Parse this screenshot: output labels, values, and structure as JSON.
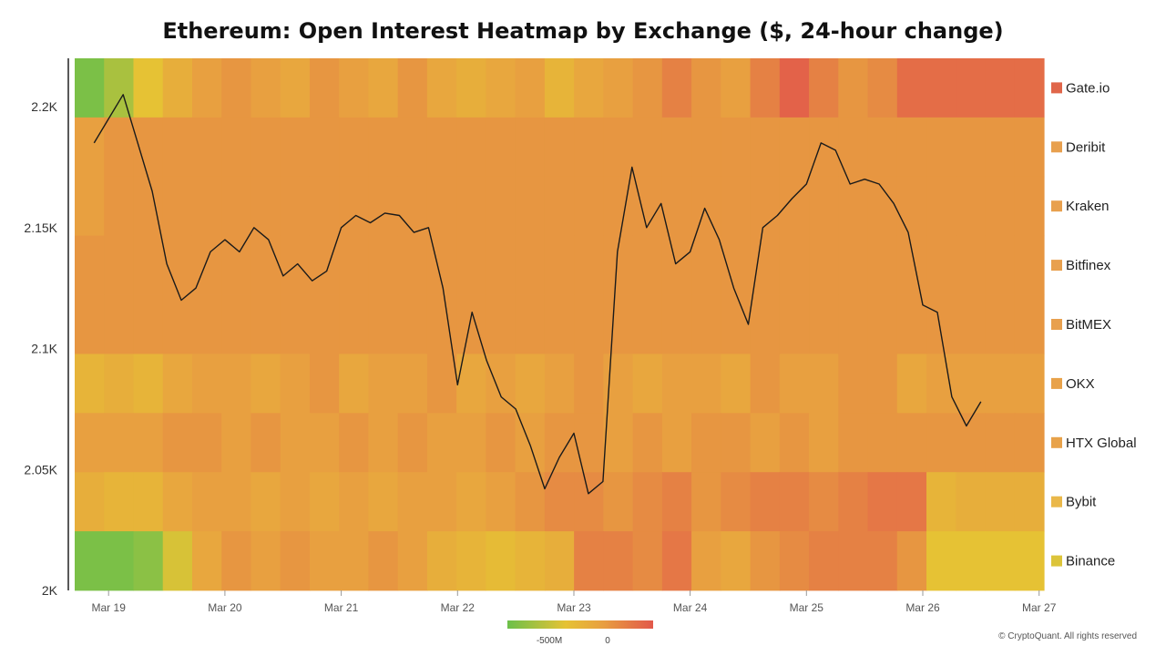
{
  "title": "Ethereum: Open Interest Heatmap by Exchange ($, 24-hour change)",
  "credit": "© CryptoQuant. All rights reserved",
  "chart_data": {
    "type": "heatmap",
    "title": "Ethereum: Open Interest Heatmap by Exchange ($, 24-hour change)",
    "x_ticks": [
      "Mar 19",
      "Mar 20",
      "Mar 21",
      "Mar 22",
      "Mar 23",
      "Mar 24",
      "Mar 25",
      "Mar 26",
      "Mar 27"
    ],
    "x_range": [
      "Mar 18 17:00",
      "Mar 27 01:00"
    ],
    "y_ticks": [
      "2.2K",
      "2.15K",
      "2.1K",
      "2.05K",
      "2K"
    ],
    "y_tick_values": [
      2200,
      2150,
      2100,
      2050,
      2000
    ],
    "ylim": [
      2000,
      2220
    ],
    "grid": false,
    "legend_position": "right",
    "exchanges": [
      "Gate.io",
      "Deribit",
      "Kraken",
      "Bitfinex",
      "BitMEX",
      "OKX",
      "HTX Global",
      "Bybit",
      "Binance"
    ],
    "exchange_colors": [
      "#e0664a",
      "#e8a04e",
      "#e8a04e",
      "#e8a04e",
      "#e8a04e",
      "#e8a24a",
      "#e8a24a",
      "#eab84a",
      "#dcc43a"
    ],
    "color_scale": {
      "colors": [
        "#6cc04a",
        "#e6c234",
        "#e8a040",
        "#e2584a"
      ],
      "tick_labels": [
        "-500M",
        "0"
      ]
    },
    "heatmap_rows": [
      {
        "name": "Gate.io",
        "values": [
          -0.9,
          -0.6,
          -0.2,
          0.1,
          0.3,
          0.4,
          0.3,
          0.2,
          0.4,
          0.3,
          0.2,
          0.4,
          0.2,
          0.1,
          0.2,
          0.3,
          0.0,
          0.2,
          0.3,
          0.4,
          0.6,
          0.4,
          0.3,
          0.6,
          0.9,
          0.6,
          0.4,
          0.5,
          0.8,
          0.8,
          0.8,
          0.8,
          0.8
        ]
      },
      {
        "name": "Deribit",
        "values": [
          0.3,
          0.4,
          0.4,
          0.4,
          0.4,
          0.4,
          0.4,
          0.4,
          0.4,
          0.4,
          0.4,
          0.4,
          0.4,
          0.4,
          0.4,
          0.4,
          0.4,
          0.4,
          0.4,
          0.4,
          0.4,
          0.4,
          0.4,
          0.4,
          0.4,
          0.4,
          0.4,
          0.4,
          0.4,
          0.4,
          0.4,
          0.4,
          0.4
        ]
      },
      {
        "name": "Kraken",
        "values": [
          0.3,
          0.4,
          0.4,
          0.4,
          0.4,
          0.4,
          0.4,
          0.4,
          0.4,
          0.4,
          0.4,
          0.4,
          0.4,
          0.4,
          0.4,
          0.4,
          0.4,
          0.4,
          0.4,
          0.4,
          0.4,
          0.4,
          0.4,
          0.4,
          0.4,
          0.4,
          0.4,
          0.4,
          0.4,
          0.4,
          0.4,
          0.4,
          0.4
        ]
      },
      {
        "name": "Bitfinex",
        "values": [
          0.4,
          0.4,
          0.4,
          0.4,
          0.4,
          0.4,
          0.4,
          0.4,
          0.4,
          0.4,
          0.4,
          0.4,
          0.4,
          0.4,
          0.4,
          0.4,
          0.4,
          0.4,
          0.4,
          0.4,
          0.4,
          0.4,
          0.4,
          0.4,
          0.4,
          0.4,
          0.4,
          0.4,
          0.4,
          0.4,
          0.4,
          0.4,
          0.4
        ]
      },
      {
        "name": "BitMEX",
        "values": [
          0.4,
          0.4,
          0.4,
          0.4,
          0.4,
          0.4,
          0.4,
          0.4,
          0.4,
          0.4,
          0.4,
          0.4,
          0.4,
          0.4,
          0.4,
          0.4,
          0.4,
          0.4,
          0.4,
          0.4,
          0.4,
          0.4,
          0.4,
          0.4,
          0.4,
          0.4,
          0.4,
          0.4,
          0.4,
          0.4,
          0.4,
          0.4,
          0.4
        ]
      },
      {
        "name": "OKX",
        "values": [
          0.0,
          0.1,
          0.0,
          0.2,
          0.3,
          0.3,
          0.2,
          0.3,
          0.4,
          0.2,
          0.3,
          0.3,
          0.4,
          0.2,
          0.3,
          0.2,
          0.3,
          0.4,
          0.3,
          0.2,
          0.3,
          0.3,
          0.2,
          0.4,
          0.3,
          0.3,
          0.4,
          0.4,
          0.2,
          0.3,
          0.3,
          0.3,
          0.3
        ]
      },
      {
        "name": "HTX Global",
        "values": [
          0.3,
          0.3,
          0.3,
          0.4,
          0.4,
          0.3,
          0.4,
          0.3,
          0.3,
          0.4,
          0.3,
          0.4,
          0.3,
          0.3,
          0.4,
          0.3,
          0.4,
          0.4,
          0.3,
          0.4,
          0.3,
          0.4,
          0.4,
          0.3,
          0.4,
          0.3,
          0.4,
          0.4,
          0.4,
          0.4,
          0.4,
          0.4,
          0.4
        ]
      },
      {
        "name": "Bybit",
        "values": [
          0.1,
          0.0,
          0.0,
          0.2,
          0.3,
          0.3,
          0.2,
          0.3,
          0.2,
          0.3,
          0.2,
          0.3,
          0.3,
          0.2,
          0.3,
          0.4,
          0.5,
          0.5,
          0.4,
          0.5,
          0.6,
          0.4,
          0.5,
          0.6,
          0.6,
          0.5,
          0.6,
          0.7,
          0.7,
          0.0,
          0.1,
          0.1,
          0.1
        ]
      },
      {
        "name": "Binance",
        "values": [
          -0.9,
          -0.9,
          -0.8,
          -0.3,
          0.2,
          0.4,
          0.3,
          0.4,
          0.3,
          0.3,
          0.4,
          0.3,
          0.1,
          0.0,
          -0.1,
          0.0,
          0.1,
          0.6,
          0.6,
          0.5,
          0.7,
          0.3,
          0.2,
          0.4,
          0.5,
          0.6,
          0.6,
          0.6,
          0.4,
          -0.2,
          -0.2,
          -0.2,
          -0.2
        ]
      }
    ],
    "series": [
      {
        "type": "line",
        "x": [
          "Mar 18 21:00",
          "Mar 19 00:00",
          "Mar 19 03:00",
          "Mar 19 06:00",
          "Mar 19 09:00",
          "Mar 19 12:00",
          "Mar 19 15:00",
          "Mar 19 18:00",
          "Mar 19 21:00",
          "Mar 20 00:00",
          "Mar 20 03:00",
          "Mar 20 06:00",
          "Mar 20 09:00",
          "Mar 20 12:00",
          "Mar 20 15:00",
          "Mar 20 18:00",
          "Mar 20 21:00",
          "Mar 21 00:00",
          "Mar 21 03:00",
          "Mar 21 06:00",
          "Mar 21 09:00",
          "Mar 21 12:00",
          "Mar 21 15:00",
          "Mar 21 18:00",
          "Mar 21 21:00",
          "Mar 22 00:00",
          "Mar 22 03:00",
          "Mar 22 06:00",
          "Mar 22 09:00",
          "Mar 22 12:00",
          "Mar 22 15:00",
          "Mar 22 18:00",
          "Mar 22 21:00",
          "Mar 23 00:00",
          "Mar 23 03:00",
          "Mar 23 06:00",
          "Mar 23 09:00",
          "Mar 23 12:00",
          "Mar 23 15:00",
          "Mar 23 18:00",
          "Mar 23 21:00",
          "Mar 24 00:00",
          "Mar 24 03:00",
          "Mar 24 06:00",
          "Mar 24 09:00",
          "Mar 24 12:00",
          "Mar 24 15:00",
          "Mar 24 18:00",
          "Mar 24 21:00",
          "Mar 25 00:00",
          "Mar 25 03:00",
          "Mar 25 06:00",
          "Mar 25 09:00",
          "Mar 25 12:00",
          "Mar 25 15:00",
          "Mar 25 18:00",
          "Mar 25 21:00",
          "Mar 26 00:00",
          "Mar 26 03:00",
          "Mar 26 06:00",
          "Mar 26 09:00",
          "Mar 26 12:00"
        ],
        "values": [
          2185,
          2195,
          2205,
          2185,
          2165,
          2135,
          2120,
          2125,
          2140,
          2145,
          2140,
          2150,
          2145,
          2130,
          2135,
          2128,
          2132,
          2150,
          2155,
          2152,
          2156,
          2155,
          2148,
          2150,
          2125,
          2085,
          2115,
          2095,
          2080,
          2075,
          2060,
          2042,
          2055,
          2065,
          2040,
          2045,
          2140,
          2175,
          2150,
          2160,
          2135,
          2140,
          2158,
          2145,
          2125,
          2110,
          2150,
          2155,
          2162,
          2168,
          2185,
          2182,
          2168,
          2170,
          2168,
          2160,
          2148,
          2118,
          2115,
          2080,
          2068,
          2078
        ]
      }
    ]
  }
}
